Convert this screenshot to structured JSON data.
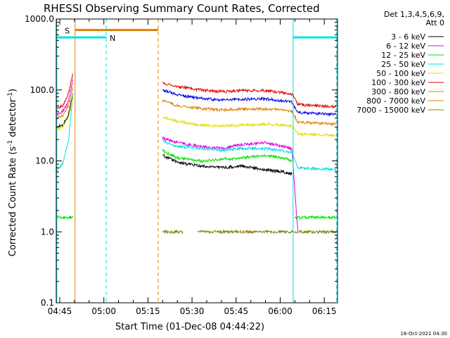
{
  "page_title": "RHESSI Observing Summary Count Rates, Corrected",
  "timestamp": "16-Oct-2021 04:30",
  "chart_data": {
    "type": "line",
    "title": "RHESSI Observing Summary Count Rates, Corrected",
    "xlabel": "Start Time (01-Dec-08 04:44:22)",
    "ylabel": "Corrected Count Rate (s",
    "ylabel_sup1": "-1",
    "ylabel_mid": " detector",
    "ylabel_sup2": "-1",
    "ylabel_end": ")",
    "y_scale": "log",
    "ylim": [
      0.1,
      1000
    ],
    "xlim_minutes": [
      -1.2,
      94.5
    ],
    "y_ticks": [
      {
        "value": 1000,
        "label": "1000.0"
      },
      {
        "value": 100,
        "label": "100.0"
      },
      {
        "value": 10,
        "label": "10.0"
      },
      {
        "value": 1,
        "label": "1.0"
      },
      {
        "value": 0.1,
        "label": "0.1"
      }
    ],
    "x_ticks": [
      {
        "minute": 0,
        "label": "04:45"
      },
      {
        "minute": 15,
        "label": "05:00"
      },
      {
        "minute": 30,
        "label": "05:15"
      },
      {
        "minute": 45,
        "label": "05:30"
      },
      {
        "minute": 60,
        "label": "05:45"
      },
      {
        "minute": 75,
        "label": "06:00"
      },
      {
        "minute": 90,
        "label": "06:15"
      }
    ],
    "legend": {
      "header1": "Det 1,3,4,5,6,9,",
      "header2": "Att 0",
      "placement": "outside-right"
    },
    "series": [
      {
        "name": "3 - 6 keV",
        "color": "#000000",
        "segments": [
          [
            [
              -1,
              30
            ],
            [
              1,
              32
            ],
            [
              3,
              45
            ],
            [
              4.5,
              90
            ]
          ],
          [
            [
              35,
              12
            ],
            [
              40,
              9.5
            ],
            [
              48,
              8.5
            ],
            [
              55,
              8
            ],
            [
              62,
              8.5
            ],
            [
              70,
              7.5
            ],
            [
              76,
              7
            ],
            [
              79,
              6.5
            ]
          ]
        ]
      },
      {
        "name": "6 - 12 keV",
        "color": "#e000e0",
        "segments": [
          [
            [
              -1,
              45
            ],
            [
              1,
              50
            ],
            [
              3,
              70
            ],
            [
              4.5,
              140
            ]
          ],
          [
            [
              35,
              21
            ],
            [
              40,
              18
            ],
            [
              48,
              16
            ],
            [
              55,
              15
            ],
            [
              62,
              17
            ],
            [
              70,
              18
            ],
            [
              76,
              16
            ],
            [
              79,
              15
            ],
            [
              81,
              1
            ]
          ]
        ]
      },
      {
        "name": "12 - 25 keV",
        "color": "#00e000",
        "segments": [
          [
            [
              -1,
              1.6
            ],
            [
              4.5,
              1.6
            ]
          ],
          [
            [
              35,
              14
            ],
            [
              40,
              11
            ],
            [
              48,
              10
            ],
            [
              55,
              10.5
            ],
            [
              62,
              11
            ],
            [
              70,
              12
            ],
            [
              76,
              11
            ],
            [
              79,
              10
            ]
          ],
          [
            [
              80,
              1.6
            ],
            [
              94,
              1.6
            ]
          ]
        ]
      },
      {
        "name": "25 - 50 keV",
        "color": "#00e0e0",
        "segments": [
          [
            [
              -1,
              7.5
            ],
            [
              1,
              9
            ],
            [
              3,
              20
            ],
            [
              4.5,
              90
            ]
          ],
          [
            [
              35,
              19
            ],
            [
              40,
              16
            ],
            [
              48,
              15
            ],
            [
              55,
              14
            ],
            [
              62,
              15
            ],
            [
              70,
              15
            ],
            [
              76,
              14
            ],
            [
              79,
              13
            ],
            [
              81,
              8
            ],
            [
              94,
              7.5
            ]
          ]
        ]
      },
      {
        "name": "50 - 100 keV",
        "color": "#e0e000",
        "segments": [
          [
            [
              -1,
              28
            ],
            [
              1,
              30
            ],
            [
              3,
              40
            ],
            [
              4.5,
              80
            ]
          ],
          [
            [
              35,
              42
            ],
            [
              40,
              36
            ],
            [
              48,
              32
            ],
            [
              55,
              31
            ],
            [
              62,
              32
            ],
            [
              70,
              33
            ],
            [
              76,
              32
            ],
            [
              79,
              31
            ],
            [
              81,
              24
            ],
            [
              94,
              23
            ]
          ]
        ]
      },
      {
        "name": "100 - 300 keV",
        "color": "#e00000",
        "segments": [
          [
            [
              -1,
              55
            ],
            [
              1,
              60
            ],
            [
              3,
              90
            ],
            [
              4.5,
              170
            ]
          ],
          [
            [
              35,
              125
            ],
            [
              40,
              112
            ],
            [
              48,
              100
            ],
            [
              55,
              95
            ],
            [
              62,
              98
            ],
            [
              70,
              98
            ],
            [
              76,
              92
            ],
            [
              79,
              88
            ],
            [
              81,
              62
            ],
            [
              94,
              58
            ]
          ]
        ]
      },
      {
        "name": "300 - 800 keV",
        "color": "#e08000",
        "segments": [
          [
            [
              -1,
              40
            ],
            [
              1,
              44
            ],
            [
              3,
              60
            ],
            [
              4.5,
              110
            ]
          ],
          [
            [
              35,
              70
            ],
            [
              40,
              60
            ],
            [
              48,
              55
            ],
            [
              55,
              52
            ],
            [
              62,
              54
            ],
            [
              70,
              54
            ],
            [
              76,
              52
            ],
            [
              79,
              50
            ],
            [
              81,
              35
            ],
            [
              94,
              33
            ]
          ]
        ]
      },
      {
        "name": "800 - 7000 keV",
        "color": "#e08000",
        "segments": []
      },
      {
        "name": "7000 - 15000 keV",
        "color": "#808000",
        "segments": [
          [
            [
              35,
              1
            ],
            [
              42,
              1
            ]
          ],
          [
            [
              47,
              1
            ],
            [
              94,
              1
            ]
          ]
        ]
      }
    ],
    "series_blue": {
      "color": "#0000e0",
      "segments": [
        [
          [
            35,
            100
          ],
          [
            40,
            85
          ],
          [
            48,
            76
          ],
          [
            55,
            72
          ],
          [
            62,
            74
          ],
          [
            70,
            75
          ],
          [
            76,
            70
          ],
          [
            79,
            67
          ],
          [
            81,
            48
          ],
          [
            94,
            45
          ]
        ]
      ]
    },
    "markers": [
      {
        "label": "S",
        "color": "#e08000",
        "from_minute": -1.2,
        "to_minute": 33.5,
        "level": 700,
        "split_minute": 5.2
      },
      {
        "label": "N",
        "color": "#00e0e0",
        "from_minute": -1.2,
        "to_minute": 15.8,
        "level": 550
      },
      {
        "label": "",
        "color": "#00e0e0",
        "from_minute": 79.4,
        "to_minute": 94.5,
        "level": 550
      }
    ],
    "vertical_lines": [
      {
        "minute": -1,
        "color": "#00e0e0",
        "style": "solid"
      },
      {
        "minute": 5.2,
        "color": "#e08000",
        "style": "solid"
      },
      {
        "minute": 15.8,
        "color": "#00e0e0",
        "style": "dashed"
      },
      {
        "minute": 33.5,
        "color": "#e08000",
        "style": "dashed"
      },
      {
        "minute": 79.4,
        "color": "#00e0e0",
        "style": "solid"
      },
      {
        "minute": 94.2,
        "color": "#00e0e0",
        "style": "dashed"
      }
    ]
  }
}
